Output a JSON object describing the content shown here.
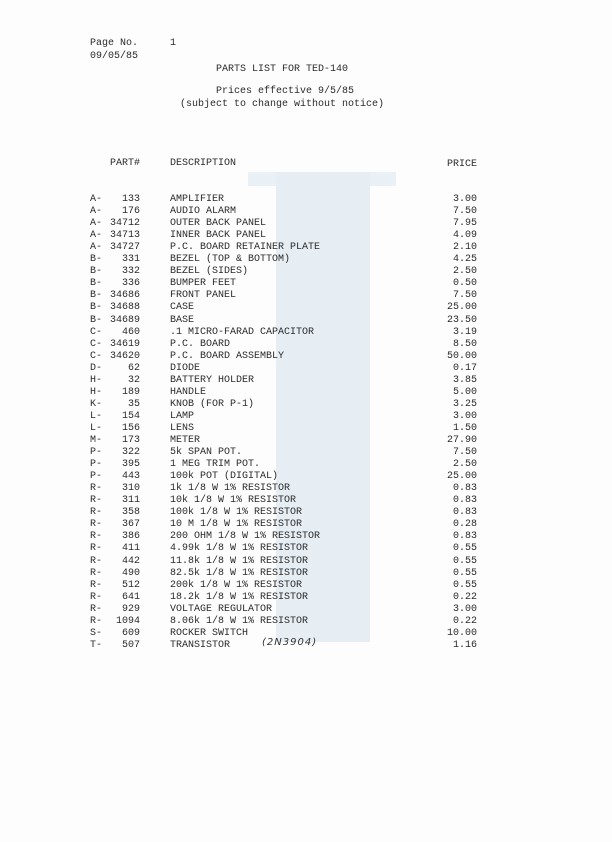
{
  "header": {
    "page_label": "Page No.",
    "page_number": "1",
    "date": "09/05/85",
    "title": "PARTS LIST FOR TED-140",
    "subtitle1": "Prices effective 9/5/85",
    "subtitle2": "(subject to change without notice)"
  },
  "columns": {
    "part": "PART#",
    "description": "DESCRIPTION",
    "price": "PRICE"
  },
  "rows": [
    {
      "prefix": "A-",
      "number": "133",
      "description": "AMPLIFIER",
      "price": "3.00"
    },
    {
      "prefix": "A-",
      "number": "176",
      "description": "AUDIO ALARM",
      "price": "7.50"
    },
    {
      "prefix": "A-",
      "number": "34712",
      "description": "OUTER BACK PANEL",
      "price": "7.95"
    },
    {
      "prefix": "A-",
      "number": "34713",
      "description": "INNER BACK PANEL",
      "price": "4.09"
    },
    {
      "prefix": "A-",
      "number": "34727",
      "description": "P.C. BOARD RETAINER PLATE",
      "price": "2.10"
    },
    {
      "prefix": "B-",
      "number": "331",
      "description": "BEZEL (TOP & BOTTOM)",
      "price": "4.25"
    },
    {
      "prefix": "B-",
      "number": "332",
      "description": "BEZEL (SIDES)",
      "price": "2.50"
    },
    {
      "prefix": "B-",
      "number": "336",
      "description": "BUMPER FEET",
      "price": "0.50"
    },
    {
      "prefix": "B-",
      "number": "34686",
      "description": "FRONT PANEL",
      "price": "7.50"
    },
    {
      "prefix": "B-",
      "number": "34688",
      "description": "CASE",
      "price": "25.00"
    },
    {
      "prefix": "B-",
      "number": "34689",
      "description": "BASE",
      "price": "23.50"
    },
    {
      "prefix": "C-",
      "number": "460",
      "description": ".1 MICRO-FARAD CAPACITOR",
      "price": "3.19"
    },
    {
      "prefix": "C-",
      "number": "34619",
      "description": "P.C. BOARD",
      "price": "8.50"
    },
    {
      "prefix": "C-",
      "number": "34620",
      "description": "P.C. BOARD ASSEMBLY",
      "price": "50.00"
    },
    {
      "prefix": "D-",
      "number": "62",
      "description": "DIODE",
      "price": "0.17"
    },
    {
      "prefix": "H-",
      "number": "32",
      "description": "BATTERY HOLDER",
      "price": "3.85"
    },
    {
      "prefix": "H-",
      "number": "189",
      "description": "HANDLE",
      "price": "5.00"
    },
    {
      "prefix": "K-",
      "number": "35",
      "description": "KNOB (FOR P-1)",
      "price": "3.25"
    },
    {
      "prefix": "L-",
      "number": "154",
      "description": "LAMP",
      "price": "3.00"
    },
    {
      "prefix": "L-",
      "number": "156",
      "description": "LENS",
      "price": "1.50"
    },
    {
      "prefix": "M-",
      "number": "173",
      "description": "METER",
      "price": "27.90"
    },
    {
      "prefix": "P-",
      "number": "322",
      "description": "5k SPAN POT.",
      "price": "7.50"
    },
    {
      "prefix": "P-",
      "number": "395",
      "description": "1 MEG TRIM POT.",
      "price": "2.50"
    },
    {
      "prefix": "P-",
      "number": "443",
      "description": "100k POT (DIGITAL)",
      "price": "25.00"
    },
    {
      "prefix": "R-",
      "number": "310",
      "description": "1k 1/8 W 1% RESISTOR",
      "price": "0.83"
    },
    {
      "prefix": "R-",
      "number": "311",
      "description": "10k 1/8 W 1% RESISTOR",
      "price": "0.83"
    },
    {
      "prefix": "R-",
      "number": "358",
      "description": "100k 1/8 W 1% RESISTOR",
      "price": "0.83"
    },
    {
      "prefix": "R-",
      "number": "367",
      "description": "10 M 1/8 W 1% RESISTOR",
      "price": "0.28"
    },
    {
      "prefix": "R-",
      "number": "386",
      "description": "200 OHM 1/8 W 1% RESISTOR",
      "price": "0.83"
    },
    {
      "prefix": "R-",
      "number": "411",
      "description": "4.99k 1/8 W 1% RESISTOR",
      "price": "0.55"
    },
    {
      "prefix": "R-",
      "number": "442",
      "description": "11.8k 1/8 W 1% RESISTOR",
      "price": "0.55"
    },
    {
      "prefix": "R-",
      "number": "490",
      "description": "82.5k 1/8 W 1% RESISTOR",
      "price": "0.55"
    },
    {
      "prefix": "R-",
      "number": "512",
      "description": "200k 1/8 W 1% RESISTOR",
      "price": "0.55"
    },
    {
      "prefix": "R-",
      "number": "641",
      "description": "18.2k 1/8 W 1% RESISTOR",
      "price": "0.22"
    },
    {
      "prefix": "R-",
      "number": "929",
      "description": "VOLTAGE REGULATOR",
      "price": "3.00"
    },
    {
      "prefix": "R-",
      "number": "1094",
      "description": "8.06k 1/8 W 1% RESISTOR",
      "price": "0.22"
    },
    {
      "prefix": "S-",
      "number": "609",
      "description": "ROCKER SWITCH",
      "price": "10.00"
    },
    {
      "prefix": "T-",
      "number": "507",
      "description": "TRANSISTOR",
      "price": "1.16"
    }
  ],
  "handwritten_note": "(2N3904)"
}
